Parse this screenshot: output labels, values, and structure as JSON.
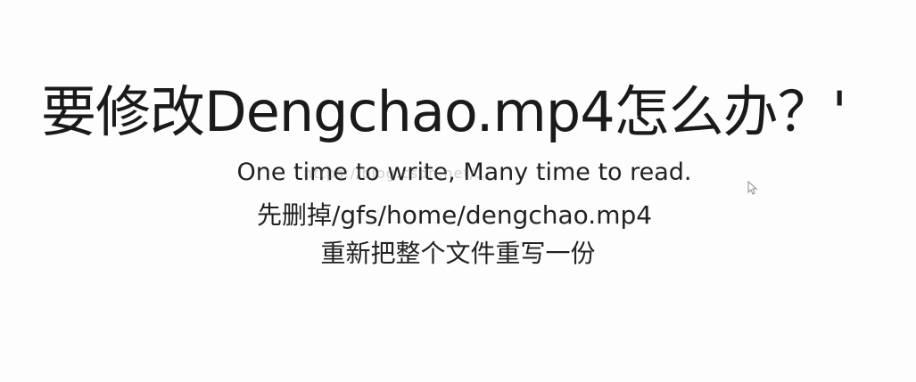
{
  "slide": {
    "title": "要修改Dengchao.mp4怎么办？'",
    "line1": "One time to write, Many time to read.",
    "line2": "先删掉/gfs/home/dengchao.mp4",
    "line3": "重新把整个文件重写一份",
    "watermark": "https://blog.csdn.net/..."
  },
  "cursor": {
    "icon": "mouse-pointer-icon"
  }
}
